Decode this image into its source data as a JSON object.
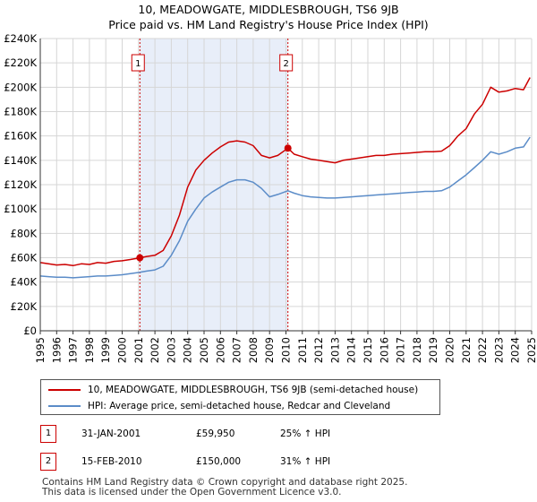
{
  "title_line1": "10, MEADOWGATE, MIDDLESBROUGH, TS6 9JB",
  "title_line2": "Price paid vs. HM Land Registry's House Price Index (HPI)",
  "legend": {
    "property_label": "10, MEADOWGATE, MIDDLESBROUGH, TS6 9JB (semi-detached house)",
    "hpi_label": "HPI: Average price, semi-detached house, Redcar and Cleveland"
  },
  "sales": [
    {
      "number": "1",
      "date": "31-JAN-2001",
      "price": "£59,950",
      "hpi_change": "25% ↑ HPI"
    },
    {
      "number": "2",
      "date": "15-FEB-2010",
      "price": "£150,000",
      "hpi_change": "31% ↑ HPI"
    }
  ],
  "footer_line1": "Contains HM Land Registry data © Crown copyright and database right 2025.",
  "footer_line2": "This data is licensed under the Open Government Licence v3.0.",
  "colors": {
    "property": "#cc0000",
    "hpi": "#5b8cc8",
    "shade": "#e8eef9",
    "grid": "#d6d6d6"
  },
  "chart_data": {
    "type": "line",
    "x_range": [
      1995,
      2025
    ],
    "y_range": [
      0,
      240000
    ],
    "y_ticks": [
      {
        "value": 0,
        "label": "£0"
      },
      {
        "value": 20000,
        "label": "£20K"
      },
      {
        "value": 40000,
        "label": "£40K"
      },
      {
        "value": 60000,
        "label": "£60K"
      },
      {
        "value": 80000,
        "label": "£80K"
      },
      {
        "value": 100000,
        "label": "£100K"
      },
      {
        "value": 120000,
        "label": "£120K"
      },
      {
        "value": 140000,
        "label": "£140K"
      },
      {
        "value": 160000,
        "label": "£160K"
      },
      {
        "value": 180000,
        "label": "£180K"
      },
      {
        "value": 200000,
        "label": "£200K"
      },
      {
        "value": 220000,
        "label": "£220K"
      },
      {
        "value": 240000,
        "label": "£240K"
      }
    ],
    "x_ticks": [
      {
        "value": 1995,
        "label": "1995"
      },
      {
        "value": 1996,
        "label": "1996"
      },
      {
        "value": 1997,
        "label": "1997"
      },
      {
        "value": 1998,
        "label": "1998"
      },
      {
        "value": 1999,
        "label": "1999"
      },
      {
        "value": 2000,
        "label": "2000"
      },
      {
        "value": 2001,
        "label": "2001"
      },
      {
        "value": 2002,
        "label": "2002"
      },
      {
        "value": 2003,
        "label": "2003"
      },
      {
        "value": 2004,
        "label": "2004"
      },
      {
        "value": 2005,
        "label": "2005"
      },
      {
        "value": 2006,
        "label": "2006"
      },
      {
        "value": 2007,
        "label": "2007"
      },
      {
        "value": 2008,
        "label": "2008"
      },
      {
        "value": 2009,
        "label": "2009"
      },
      {
        "value": 2010,
        "label": "2010"
      },
      {
        "value": 2011,
        "label": "2011"
      },
      {
        "value": 2012,
        "label": "2012"
      },
      {
        "value": 2013,
        "label": "2013"
      },
      {
        "value": 2014,
        "label": "2014"
      },
      {
        "value": 2015,
        "label": "2015"
      },
      {
        "value": 2016,
        "label": "2016"
      },
      {
        "value": 2017,
        "label": "2017"
      },
      {
        "value": 2018,
        "label": "2018"
      },
      {
        "value": 2019,
        "label": "2019"
      },
      {
        "value": 2020,
        "label": "2020"
      },
      {
        "value": 2021,
        "label": "2021"
      },
      {
        "value": 2022,
        "label": "2022"
      },
      {
        "value": 2023,
        "label": "2023"
      },
      {
        "value": 2024,
        "label": "2024"
      },
      {
        "value": 2025,
        "label": "2025"
      }
    ],
    "shaded_range": [
      2001.08,
      2010.12
    ],
    "markers": [
      {
        "label": "1",
        "x": 2001.08,
        "y": 59950
      },
      {
        "label": "2",
        "x": 2010.12,
        "y": 150000
      }
    ],
    "series": [
      {
        "name": "10, MEADOWGATE, MIDDLESBROUGH, TS6 9JB (semi-detached house)",
        "x": [
          1995,
          1995.5,
          1996,
          1996.5,
          1997,
          1997.5,
          1998,
          1998.5,
          1999,
          1999.5,
          2000,
          2000.5,
          2001.08,
          2001.5,
          2002,
          2002.5,
          2003,
          2003.5,
          2004,
          2004.5,
          2005,
          2005.5,
          2006,
          2006.5,
          2007,
          2007.5,
          2008,
          2008.5,
          2009,
          2009.5,
          2010.12,
          2010.5,
          2011,
          2011.5,
          2012,
          2012.5,
          2013,
          2013.5,
          2014,
          2014.5,
          2015,
          2015.5,
          2016,
          2016.5,
          2017,
          2017.5,
          2018,
          2018.5,
          2019,
          2019.5,
          2020,
          2020.5,
          2021,
          2021.5,
          2022,
          2022.5,
          2023,
          2023.5,
          2024,
          2024.5,
          2024.9
        ],
        "y": [
          56000,
          55000,
          54000,
          54500,
          53500,
          55000,
          54500,
          56000,
          55500,
          57000,
          57500,
          58500,
          59950,
          61000,
          62000,
          66000,
          78000,
          95000,
          118000,
          132000,
          140000,
          146000,
          151000,
          155000,
          156000,
          155000,
          152000,
          144000,
          142000,
          144000,
          150000,
          145000,
          143000,
          141000,
          140000,
          139000,
          138000,
          140000,
          141000,
          142000,
          143000,
          144000,
          144000,
          145000,
          145500,
          146000,
          146500,
          147000,
          147000,
          147500,
          152000,
          160000,
          166000,
          178000,
          186000,
          200000,
          196000,
          197000,
          199000,
          198000,
          208000
        ]
      },
      {
        "name": "HPI: Average price, semi-detached house, Redcar and Cleveland",
        "x": [
          1995,
          1995.5,
          1996,
          1996.5,
          1997,
          1997.5,
          1998,
          1998.5,
          1999,
          1999.5,
          2000,
          2000.5,
          2001.08,
          2001.5,
          2002,
          2002.5,
          2003,
          2003.5,
          2004,
          2004.5,
          2005,
          2005.5,
          2006,
          2006.5,
          2007,
          2007.5,
          2008,
          2008.5,
          2009,
          2009.5,
          2010.12,
          2010.5,
          2011,
          2011.5,
          2012,
          2012.5,
          2013,
          2013.5,
          2014,
          2014.5,
          2015,
          2015.5,
          2016,
          2016.5,
          2017,
          2017.5,
          2018,
          2018.5,
          2019,
          2019.5,
          2020,
          2020.5,
          2021,
          2021.5,
          2022,
          2022.5,
          2023,
          2023.5,
          2024,
          2024.5,
          2024.9
        ],
        "y": [
          45000,
          44500,
          44000,
          44000,
          43500,
          44000,
          44500,
          45000,
          45000,
          45500,
          46000,
          47000,
          48000,
          49000,
          50000,
          53000,
          62000,
          74000,
          90000,
          100000,
          109000,
          114000,
          118000,
          122000,
          124000,
          124000,
          122000,
          117000,
          110000,
          112000,
          115000,
          113000,
          111000,
          110000,
          109500,
          109000,
          109000,
          109500,
          110000,
          110500,
          111000,
          111500,
          112000,
          112500,
          113000,
          113500,
          114000,
          114500,
          114500,
          115000,
          118000,
          123000,
          128000,
          134000,
          140000,
          147000,
          145000,
          147000,
          150000,
          151000,
          159000
        ]
      }
    ]
  }
}
